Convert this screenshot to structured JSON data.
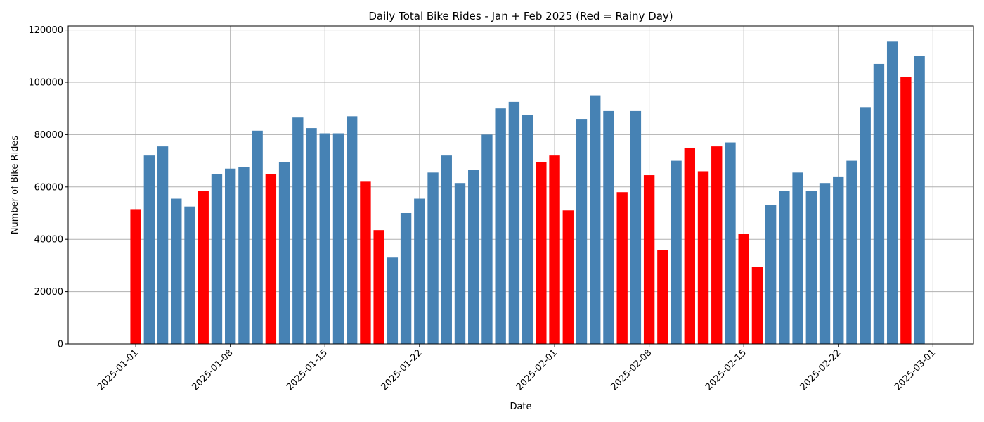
{
  "chart_data": {
    "type": "bar",
    "title": "Daily Total Bike Rides - Jan + Feb 2025 (Red = Rainy Day)",
    "xlabel": "Date",
    "ylabel": "Number of Bike Rides",
    "ylim": [
      0,
      121500
    ],
    "yticks": [
      0,
      20000,
      40000,
      60000,
      80000,
      100000,
      120000
    ],
    "x_range": [
      "2024-12-27",
      "2025-03-04"
    ],
    "xticks": [
      "2025-01-01",
      "2025-01-08",
      "2025-01-15",
      "2025-01-22",
      "2025-02-01",
      "2025-02-08",
      "2025-02-15",
      "2025-02-22",
      "2025-03-01"
    ],
    "grid": true,
    "colors": {
      "rainy": "#ff0000",
      "dry": "#4682b4"
    },
    "dates": [
      "2025-01-01",
      "2025-01-02",
      "2025-01-03",
      "2025-01-04",
      "2025-01-05",
      "2025-01-06",
      "2025-01-07",
      "2025-01-08",
      "2025-01-09",
      "2025-01-10",
      "2025-01-11",
      "2025-01-12",
      "2025-01-13",
      "2025-01-14",
      "2025-01-15",
      "2025-01-16",
      "2025-01-17",
      "2025-01-18",
      "2025-01-19",
      "2025-01-20",
      "2025-01-21",
      "2025-01-22",
      "2025-01-23",
      "2025-01-24",
      "2025-01-25",
      "2025-01-26",
      "2025-01-27",
      "2025-01-28",
      "2025-01-29",
      "2025-01-30",
      "2025-01-31",
      "2025-02-01",
      "2025-02-02",
      "2025-02-03",
      "2025-02-04",
      "2025-02-05",
      "2025-02-06",
      "2025-02-07",
      "2025-02-08",
      "2025-02-09",
      "2025-02-10",
      "2025-02-11",
      "2025-02-12",
      "2025-02-13",
      "2025-02-14",
      "2025-02-15",
      "2025-02-16",
      "2025-02-17",
      "2025-02-18",
      "2025-02-19",
      "2025-02-20",
      "2025-02-21",
      "2025-02-22",
      "2025-02-23",
      "2025-02-24",
      "2025-02-25",
      "2025-02-26",
      "2025-02-27",
      "2025-02-28"
    ],
    "values": [
      51500,
      72000,
      75500,
      55500,
      52500,
      58500,
      65000,
      67000,
      67500,
      81500,
      65000,
      69500,
      86500,
      82500,
      80500,
      80500,
      87000,
      62000,
      43500,
      33000,
      50000,
      55500,
      65500,
      72000,
      61500,
      66500,
      80000,
      90000,
      92500,
      87500,
      69500,
      72000,
      51000,
      86000,
      95000,
      89000,
      58000,
      89000,
      64500,
      36000,
      70000,
      75000,
      66000,
      75500,
      77000,
      42000,
      29500,
      53000,
      58500,
      65500,
      58500,
      61500,
      64000,
      70000,
      90500,
      107000,
      115500,
      102000,
      110000
    ],
    "rainy": [
      true,
      false,
      false,
      false,
      false,
      true,
      false,
      false,
      false,
      false,
      true,
      false,
      false,
      false,
      false,
      false,
      false,
      true,
      true,
      false,
      false,
      false,
      false,
      false,
      false,
      false,
      false,
      false,
      false,
      false,
      true,
      true,
      true,
      false,
      false,
      false,
      true,
      false,
      true,
      true,
      false,
      true,
      true,
      true,
      false,
      true,
      true,
      false,
      false,
      false,
      false,
      false,
      false,
      false,
      false,
      false,
      false,
      true,
      false
    ]
  }
}
